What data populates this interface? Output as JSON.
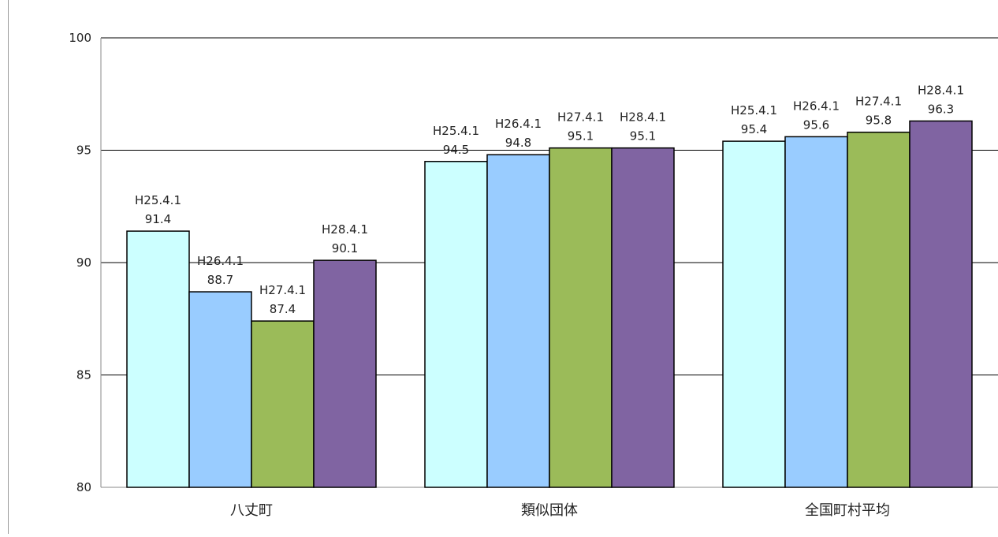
{
  "chart_data": {
    "type": "bar",
    "categories": [
      "八丈町",
      "類似団体",
      "全国町村平均"
    ],
    "series": [
      {
        "name": "H25.4.1",
        "values": [
          91.4,
          94.5,
          95.4
        ]
      },
      {
        "name": "H26.4.1",
        "values": [
          88.7,
          94.8,
          95.6
        ]
      },
      {
        "name": "H27.4.1",
        "values": [
          87.4,
          95.1,
          95.8
        ]
      },
      {
        "name": "H28.4.1",
        "values": [
          90.1,
          95.1,
          96.3
        ]
      }
    ],
    "ylim": [
      80,
      100
    ],
    "yticks": [
      80,
      85,
      90,
      95,
      100
    ],
    "grid": true,
    "colors": [
      "#ccffff",
      "#99ccff",
      "#9bbb59",
      "#8064a2"
    ],
    "data_labels": "series name above value"
  }
}
